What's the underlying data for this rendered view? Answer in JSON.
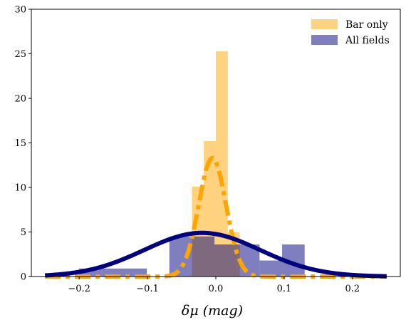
{
  "chart_data": {
    "type": "histogram",
    "xlabel": "δμ (mag)",
    "ylabel": "",
    "xlim": [
      -0.27,
      0.27
    ],
    "ylim": [
      0,
      30
    ],
    "x_ticks": [
      -0.2,
      -0.1,
      0.0,
      0.1,
      0.2
    ],
    "x_tick_labels": [
      "−0.2",
      "−0.1",
      "0.0",
      "0.1",
      "0.2"
    ],
    "y_ticks": [
      0,
      5,
      10,
      15,
      20,
      25,
      30
    ],
    "y_tick_labels": [
      "0",
      "5",
      "10",
      "15",
      "20",
      "25",
      "30"
    ],
    "legend_position": "top-right",
    "series": [
      {
        "name": "Bar only",
        "color": "#ffa500",
        "opacity": 0.5,
        "bins": [
          {
            "x0": -0.035,
            "x1": -0.0175,
            "value": 10.1
          },
          {
            "x0": -0.0175,
            "x1": 0.0,
            "value": 15.2
          },
          {
            "x0": 0.0,
            "x1": 0.0175,
            "value": 25.3
          },
          {
            "x0": 0.0175,
            "x1": 0.035,
            "value": 5.0
          }
        ]
      },
      {
        "name": "All fields",
        "color": "#00007f",
        "opacity": 0.5,
        "bins": [
          {
            "x0": -0.2,
            "x1": -0.167,
            "value": 0.9
          },
          {
            "x0": -0.167,
            "x1": -0.134,
            "value": 0.9
          },
          {
            "x0": -0.134,
            "x1": -0.101,
            "value": 0.9
          },
          {
            "x0": -0.101,
            "x1": -0.068,
            "value": 0.0
          },
          {
            "x0": -0.068,
            "x1": -0.035,
            "value": 4.5
          },
          {
            "x0": -0.035,
            "x1": -0.002,
            "value": 4.5
          },
          {
            "x0": -0.002,
            "x1": 0.031,
            "value": 3.6
          },
          {
            "x0": 0.031,
            "x1": 0.064,
            "value": 3.6
          },
          {
            "x0": 0.064,
            "x1": 0.097,
            "value": 1.8
          },
          {
            "x0": 0.097,
            "x1": 0.13,
            "value": 3.6
          }
        ]
      }
    ],
    "curves": [
      {
        "series": "Bar only",
        "color": "#ffa500",
        "style": "dashdot",
        "mean": -0.005,
        "sigma": 0.02,
        "amplitude": 13.3
      },
      {
        "series": "All fields",
        "color": "#000080",
        "style": "solid",
        "mean": -0.02,
        "sigma": 0.085,
        "amplitude": 4.9
      }
    ],
    "legend": [
      {
        "label": "Bar only",
        "color": "#ffa500"
      },
      {
        "label": "All fields",
        "color": "#00007f"
      }
    ]
  }
}
